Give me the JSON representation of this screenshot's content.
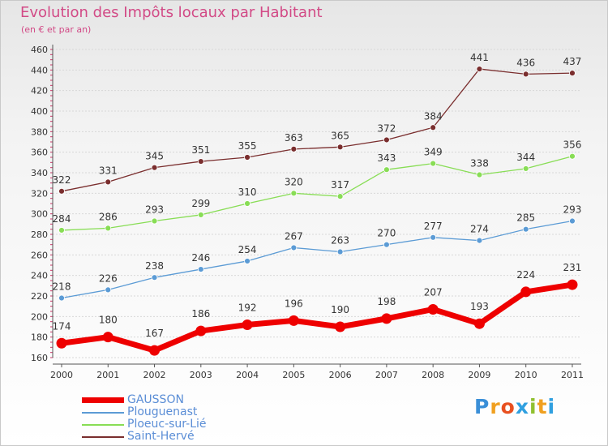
{
  "chart_data": {
    "type": "line",
    "title": "Evolution des Impôts locaux par Habitant",
    "subtitle": "(en € et par an)",
    "xlabel": "",
    "ylabel": "",
    "categories": [
      "2000",
      "2001",
      "2002",
      "2003",
      "2004",
      "2005",
      "2006",
      "2007",
      "2008",
      "2009",
      "2010",
      "2011"
    ],
    "ylim": [
      160,
      460
    ],
    "yticks": [
      160,
      180,
      200,
      220,
      240,
      260,
      280,
      300,
      320,
      340,
      360,
      380,
      400,
      420,
      440,
      460
    ],
    "grid": true,
    "legend_position": "bottom-left",
    "series": [
      {
        "name": "GAUSSON",
        "color": "#ee0000",
        "values": [
          174,
          180,
          167,
          186,
          192,
          196,
          190,
          198,
          207,
          193,
          224,
          231
        ]
      },
      {
        "name": "Plouguenast",
        "color": "#5b9bd5",
        "values": [
          218,
          226,
          238,
          246,
          254,
          267,
          263,
          270,
          277,
          274,
          285,
          293
        ]
      },
      {
        "name": "Ploeuc-sur-Lié",
        "color": "#88dd55",
        "values": [
          284,
          286,
          293,
          299,
          310,
          320,
          317,
          343,
          349,
          338,
          344,
          356
        ]
      },
      {
        "name": "Saint-Hervé",
        "color": "#7a2e2e",
        "values": [
          322,
          331,
          345,
          351,
          355,
          363,
          365,
          372,
          384,
          441,
          436,
          437
        ]
      }
    ]
  },
  "logo": {
    "letters": [
      {
        "ch": "P",
        "color": "#3a8fd8"
      },
      {
        "ch": "r",
        "color": "#f0a020"
      },
      {
        "ch": "o",
        "color": "#e85020"
      },
      {
        "ch": "x",
        "color": "#30a0e0"
      },
      {
        "ch": "i",
        "color": "#90c030"
      },
      {
        "ch": "t",
        "color": "#f0a020"
      },
      {
        "ch": "i",
        "color": "#30a0e0"
      }
    ]
  }
}
